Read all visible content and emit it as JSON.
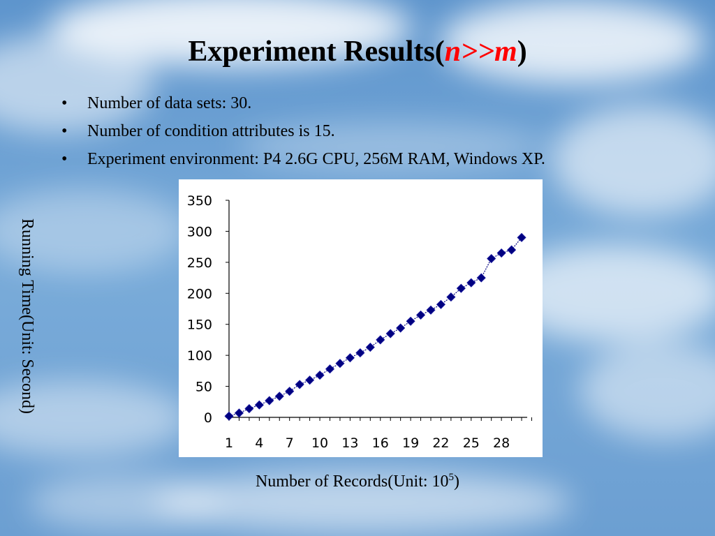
{
  "slide": {
    "title_prefix": "Experiment Results(",
    "title_emph": "n>>m",
    "title_suffix": ")",
    "bullets": [
      "Number of data sets: 30.",
      "Number of condition attributes is 15.",
      "Experiment environment: P4 2.6G CPU, 256M RAM, Windows XP."
    ],
    "bullet_glyph": "•"
  },
  "chart_data": {
    "type": "line",
    "marker": "diamond",
    "series_color": "#000080",
    "x": [
      1,
      2,
      3,
      4,
      5,
      6,
      7,
      8,
      9,
      10,
      11,
      12,
      13,
      14,
      15,
      16,
      17,
      18,
      19,
      20,
      21,
      22,
      23,
      24,
      25,
      26,
      27,
      28,
      29,
      30
    ],
    "y": [
      2,
      7,
      14,
      20,
      27,
      34,
      42,
      53,
      60,
      68,
      78,
      87,
      96,
      104,
      113,
      125,
      135,
      144,
      155,
      165,
      173,
      182,
      194,
      208,
      217,
      225,
      256,
      265,
      270,
      290
    ],
    "ylim": [
      0,
      350
    ],
    "yticks": [
      "0",
      "50",
      "100",
      "150",
      "200",
      "250",
      "300",
      "350"
    ],
    "xtick_labels": [
      "1",
      "4",
      "7",
      "10",
      "13",
      "16",
      "19",
      "22",
      "25",
      "28"
    ],
    "xtick_values": [
      1,
      4,
      7,
      10,
      13,
      16,
      19,
      22,
      25,
      28
    ],
    "ylabel": "Running Time(Unit: Second)",
    "xlabel_text": "Number of Records(Unit: 10",
    "xlabel_sup": "5",
    "xlabel_end": ")",
    "grid": false,
    "legend": false
  }
}
